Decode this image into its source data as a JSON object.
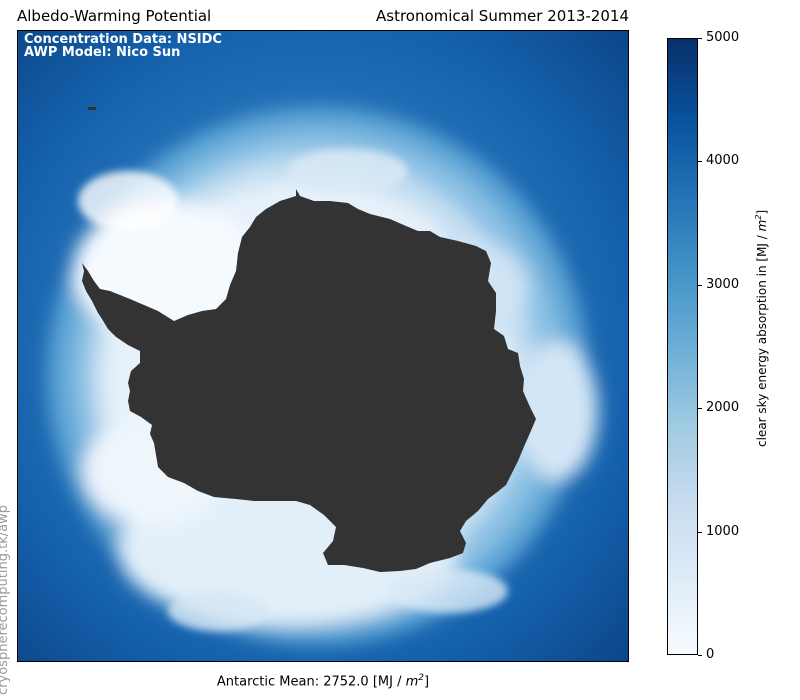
{
  "header": {
    "title_left": "Albedo-Warming Potential",
    "title_right": "Astronomical Summer 2013-2014"
  },
  "map": {
    "overlay_line1": "Concentration Data: NSIDC",
    "overlay_line2": "AWP Model: Nico Sun",
    "mean_text": "Antarctic Mean: 2752.0 [MJ / ",
    "mean_unit_sup": "2",
    "mean_unit_base": "m",
    "land_color": "#333333",
    "ocean_color": "#0b4a93"
  },
  "colorbar": {
    "label_text": "clear sky energy absorption in [MJ / ",
    "label_unit_base": "m",
    "label_unit_sup": "2",
    "ticks": [
      "5000",
      "4000",
      "3000",
      "2000",
      "1000",
      "0"
    ],
    "range": [
      0,
      5000
    ],
    "colormap": "Blues"
  },
  "watermark": {
    "text": "cryospherecomputing.tk/awp"
  }
}
